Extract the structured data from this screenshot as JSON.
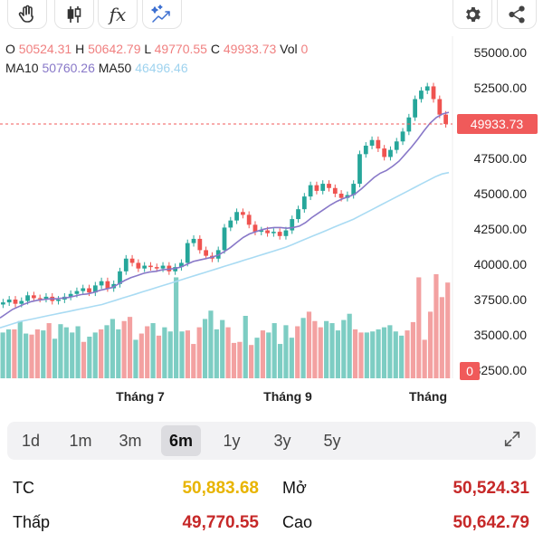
{
  "toolbar": {
    "left_tools": [
      {
        "icon": "hand-icon"
      },
      {
        "icon": "candlestick-icon"
      },
      {
        "icon": "function-icon",
        "glyph": "fx"
      },
      {
        "icon": "auto-pattern-icon"
      }
    ],
    "right_tools": [
      {
        "icon": "gear-icon"
      },
      {
        "icon": "share-icon"
      }
    ]
  },
  "ohlc": {
    "o_label": "O",
    "o_value": "50524.31",
    "h_label": "H",
    "h_value": "50642.79",
    "l_label": "L",
    "l_value": "49770.55",
    "c_label": "C",
    "c_value": "49933.73",
    "vol_label": "Vol",
    "vol_value": "0"
  },
  "ma": {
    "ma10_label": "MA10",
    "ma10_value": "50760.26",
    "ma50_label": "MA50",
    "ma50_value": "46496.46"
  },
  "colors": {
    "up": "#26a69a",
    "down": "#ef5350",
    "ma10": "#8878c8",
    "ma50": "#a9dbf3",
    "last_price_tag": "#f05a5a",
    "reference_price": "#e8b400",
    "value_red": "#c62828"
  },
  "chart_data": {
    "type": "candlestick",
    "y_axis_ticks": [
      "55000.00",
      "52500.00",
      "50000.00",
      "47500.00",
      "45000.00",
      "42500.00",
      "40000.00",
      "37500.00",
      "35000.00",
      "32500.00"
    ],
    "x_axis_ticks": [
      "Tháng 7",
      "Tháng 9",
      "Tháng"
    ],
    "ylim": [
      32000,
      55500
    ],
    "last_price_label": "49933.73",
    "last_volume_label": "0",
    "close_series": [
      37300,
      37500,
      37200,
      37400,
      37800,
      37600,
      37550,
      37700,
      37400,
      37500,
      37700,
      37900,
      38100,
      38300,
      38000,
      38500,
      38800,
      38300,
      38600,
      39500,
      40400,
      40100,
      39700,
      39900,
      39800,
      39700,
      39900,
      39500,
      39800,
      40100,
      41500,
      41800,
      41000,
      40600,
      40400,
      41000,
      42600,
      43100,
      43700,
      43500,
      42800,
      42300,
      42400,
      42200,
      42300,
      42000,
      42400,
      43200,
      43900,
      44800,
      45600,
      45200,
      45700,
      45400,
      45000,
      44700,
      44900,
      45700,
      47800,
      48400,
      48800,
      48200,
      47600,
      48100,
      48700,
      49400,
      50400,
      51700,
      52300,
      52600,
      51700,
      50600,
      49930
    ],
    "ma10": [
      36200,
      36500,
      36800,
      37000,
      37200,
      37350,
      37450,
      37500,
      37550,
      37550,
      37600,
      37650,
      37750,
      37850,
      37900,
      38000,
      38150,
      38250,
      38350,
      38600,
      38850,
      39050,
      39200,
      39350,
      39450,
      39500,
      39600,
      39650,
      39700,
      39800,
      40000,
      40200,
      40300,
      40400,
      40500,
      40650,
      40900,
      41200,
      41550,
      41900,
      42150,
      42300,
      42450,
      42550,
      42600,
      42600,
      42550,
      42600,
      42700,
      42950,
      43300,
      43600,
      43900,
      44200,
      44450,
      44650,
      44800,
      45000,
      45350,
      45750,
      46150,
      46450,
      46650,
      46950,
      47300,
      47800,
      48300,
      48850,
      49450,
      50000,
      50400,
      50650,
      50760
    ],
    "ma50": [
      35500,
      35650,
      35800,
      35950,
      36050,
      36150,
      36250,
      36350,
      36450,
      36550,
      36650,
      36750,
      36850,
      36950,
      37050,
      37150,
      37300,
      37450,
      37600,
      37750,
      37900,
      38050,
      38200,
      38350,
      38500,
      38650,
      38800,
      38950,
      39100,
      39250,
      39400,
      39550,
      39700,
      39850,
      40000,
      40150,
      40300,
      40450,
      40600,
      40750,
      40900,
      41050,
      41200,
      41400,
      41600,
      41800,
      42000,
      42200,
      42400,
      42600,
      42800,
      43000,
      43200,
      43450,
      43700,
      43950,
      44200,
      44450,
      44700,
      44950,
      45200,
      45450,
      45700,
      45950,
      46200,
      46400,
      46496
    ],
    "volume_scale": [
      0.44,
      0.47,
      0.47,
      0.55,
      0.43,
      0.42,
      0.47,
      0.46,
      0.53,
      0.38,
      0.52,
      0.49,
      0.44,
      0.5,
      0.35,
      0.4,
      0.44,
      0.47,
      0.51,
      0.57,
      0.47,
      0.55,
      0.59,
      0.37,
      0.43,
      0.5,
      0.53,
      0.41,
      0.49,
      0.45,
      0.97,
      0.45,
      0.46,
      0.33,
      0.49,
      0.57,
      0.65,
      0.47,
      0.56,
      0.49,
      0.34,
      0.35,
      0.6,
      0.32,
      0.39,
      0.46,
      0.44,
      0.53,
      0.33,
      0.51,
      0.39,
      0.5,
      0.58,
      0.64,
      0.55,
      0.49,
      0.55,
      0.53,
      0.46,
      0.56,
      0.62,
      0.47,
      0.44,
      0.44,
      0.45,
      0.47,
      0.49,
      0.51,
      0.45,
      0.41,
      0.46,
      0.54,
      0.97,
      0.37,
      0.64,
      1.0,
      0.78,
      0.92
    ]
  },
  "periods": [
    {
      "label": "1d",
      "active": false
    },
    {
      "label": "1m",
      "active": false
    },
    {
      "label": "3m",
      "active": false
    },
    {
      "label": "6m",
      "active": true
    },
    {
      "label": "1y",
      "active": false
    },
    {
      "label": "3y",
      "active": false
    },
    {
      "label": "5y",
      "active": false
    }
  ],
  "stats": {
    "tc_label": "TC",
    "tc_value": "50,883.68",
    "open_label": "Mở",
    "open_value": "50,524.31",
    "low_label": "Thấp",
    "low_value": "49,770.55",
    "high_label": "Cao",
    "high_value": "50,642.79"
  }
}
